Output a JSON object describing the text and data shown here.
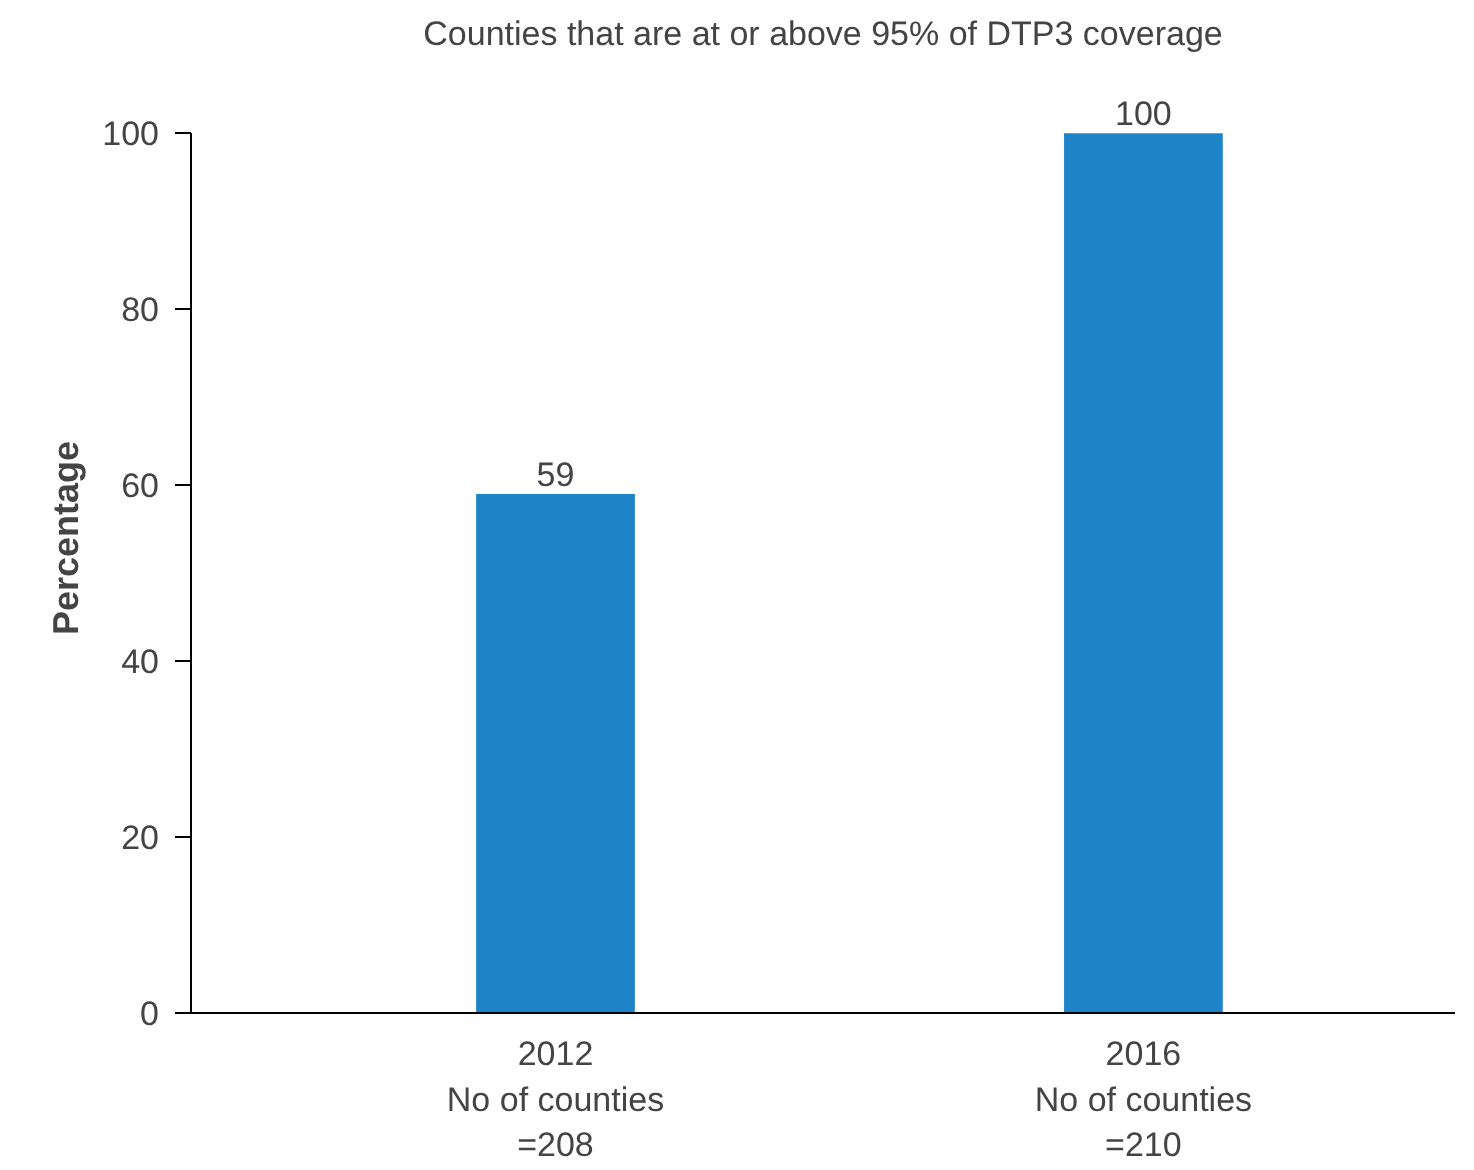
{
  "chart_data": {
    "type": "bar",
    "title": "Counties that are at or above 95% of DTP3 coverage",
    "ylabel": "Percentage",
    "categories": [
      "2012\nNo of counties\n=208",
      "2016\nNo of counties\n=210"
    ],
    "values": [
      59,
      100
    ],
    "color": "#1f83c8",
    "data_labels": true,
    "ylim": [
      0,
      100
    ],
    "yticks": [
      0,
      20,
      40,
      60,
      80,
      100
    ],
    "grid": false
  }
}
